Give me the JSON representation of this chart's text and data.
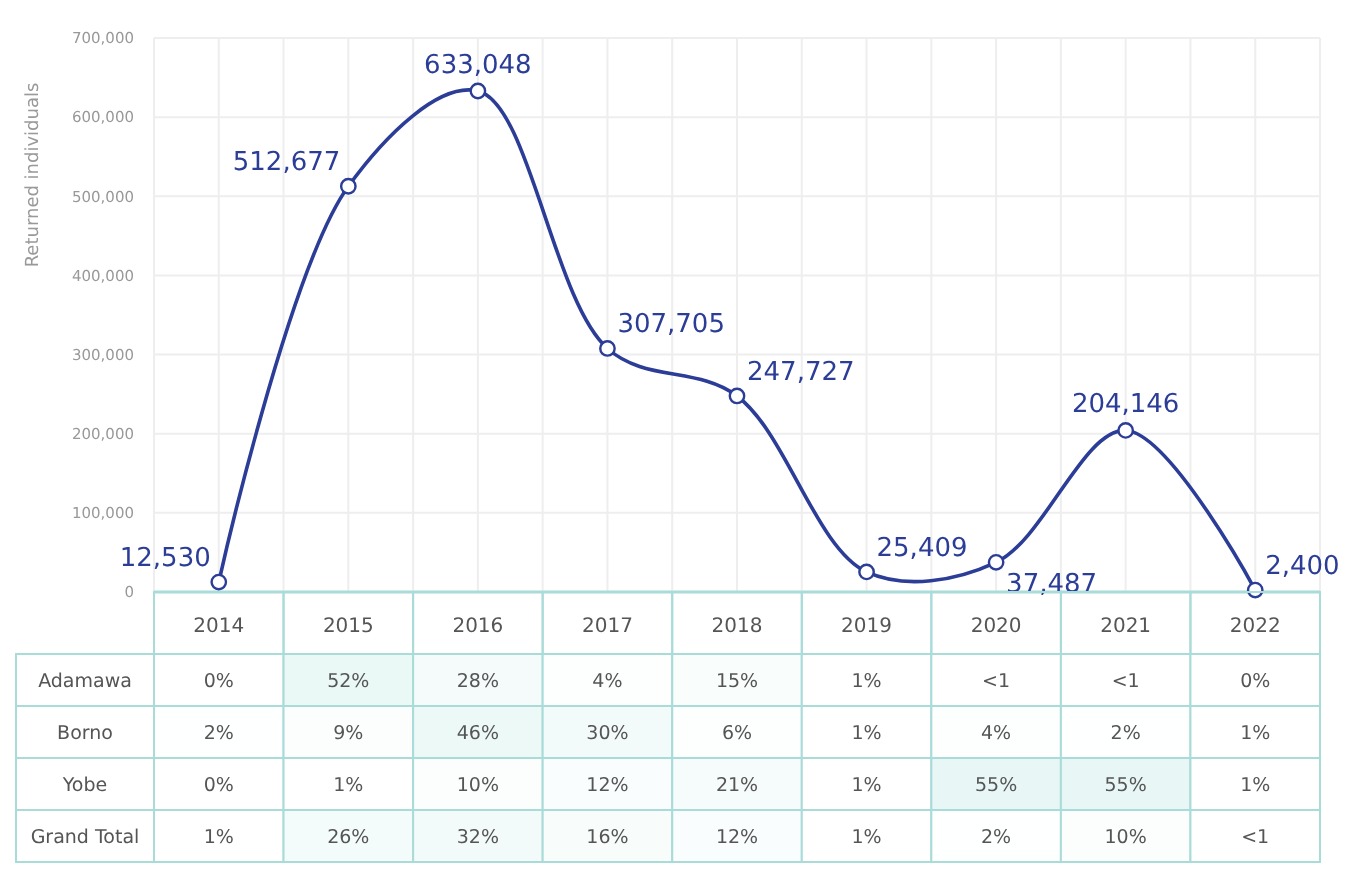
{
  "chart_data": [
    {
      "type": "line",
      "ylabel": "Returned individuals",
      "categories": [
        "2014",
        "2015",
        "2016",
        "2017",
        "2018",
        "2019",
        "2020",
        "2021",
        "2022"
      ],
      "series": [
        {
          "color": "#2b3d96",
          "values": [
            12530,
            512677,
            633048,
            307705,
            247727,
            25409,
            37487,
            204146,
            2400
          ],
          "value_labels": [
            "12,530",
            "512,677",
            "633,048",
            "307,705",
            "247,727",
            "25,409",
            "37,487",
            "204,146",
            "2,400"
          ]
        }
      ],
      "ylim": [
        0,
        700000
      ],
      "yticks": [
        {
          "value": 0,
          "label": "0"
        },
        {
          "value": 100000,
          "label": "100,000"
        },
        {
          "value": 200000,
          "label": "200,000"
        },
        {
          "value": 300000,
          "label": "300,000"
        },
        {
          "value": 400000,
          "label": "400,000"
        },
        {
          "value": 500000,
          "label": "500,000"
        },
        {
          "value": 600000,
          "label": "600,000"
        },
        {
          "value": 700000,
          "label": "700,000"
        }
      ],
      "grid": true,
      "marker": "circle"
    },
    {
      "type": "heatmap",
      "categories": [
        null,
        null,
        null,
        null,
        null,
        null,
        null,
        null,
        null
      ],
      "y_categories": [
        "Adamawa",
        "Borno",
        "Yobe",
        "Grand Total"
      ],
      "cells": [
        [
          0,
          52,
          28,
          4,
          15,
          1,
          null,
          null,
          0
        ],
        [
          2,
          9,
          46,
          30,
          6,
          1,
          4,
          2,
          1
        ],
        [
          0,
          1,
          10,
          12,
          21,
          1,
          55,
          55,
          1
        ],
        [
          1,
          26,
          32,
          16,
          12,
          1,
          2,
          10,
          null
        ]
      ],
      "cell_labels": [
        [
          "0%",
          "52%",
          "28%",
          "4%",
          "15%",
          "1%",
          "<1",
          "<1",
          "0%"
        ],
        [
          "2%",
          "9%",
          "46%",
          "30%",
          "6%",
          "1%",
          "4%",
          "2%",
          "1%"
        ],
        [
          "0%",
          "1%",
          "10%",
          "12%",
          "21%",
          "1%",
          "55%",
          "55%",
          "1%"
        ],
        [
          "1%",
          "26%",
          "32%",
          "16%",
          "12%",
          "1%",
          "2%",
          "10%",
          "<1"
        ]
      ]
    }
  ]
}
